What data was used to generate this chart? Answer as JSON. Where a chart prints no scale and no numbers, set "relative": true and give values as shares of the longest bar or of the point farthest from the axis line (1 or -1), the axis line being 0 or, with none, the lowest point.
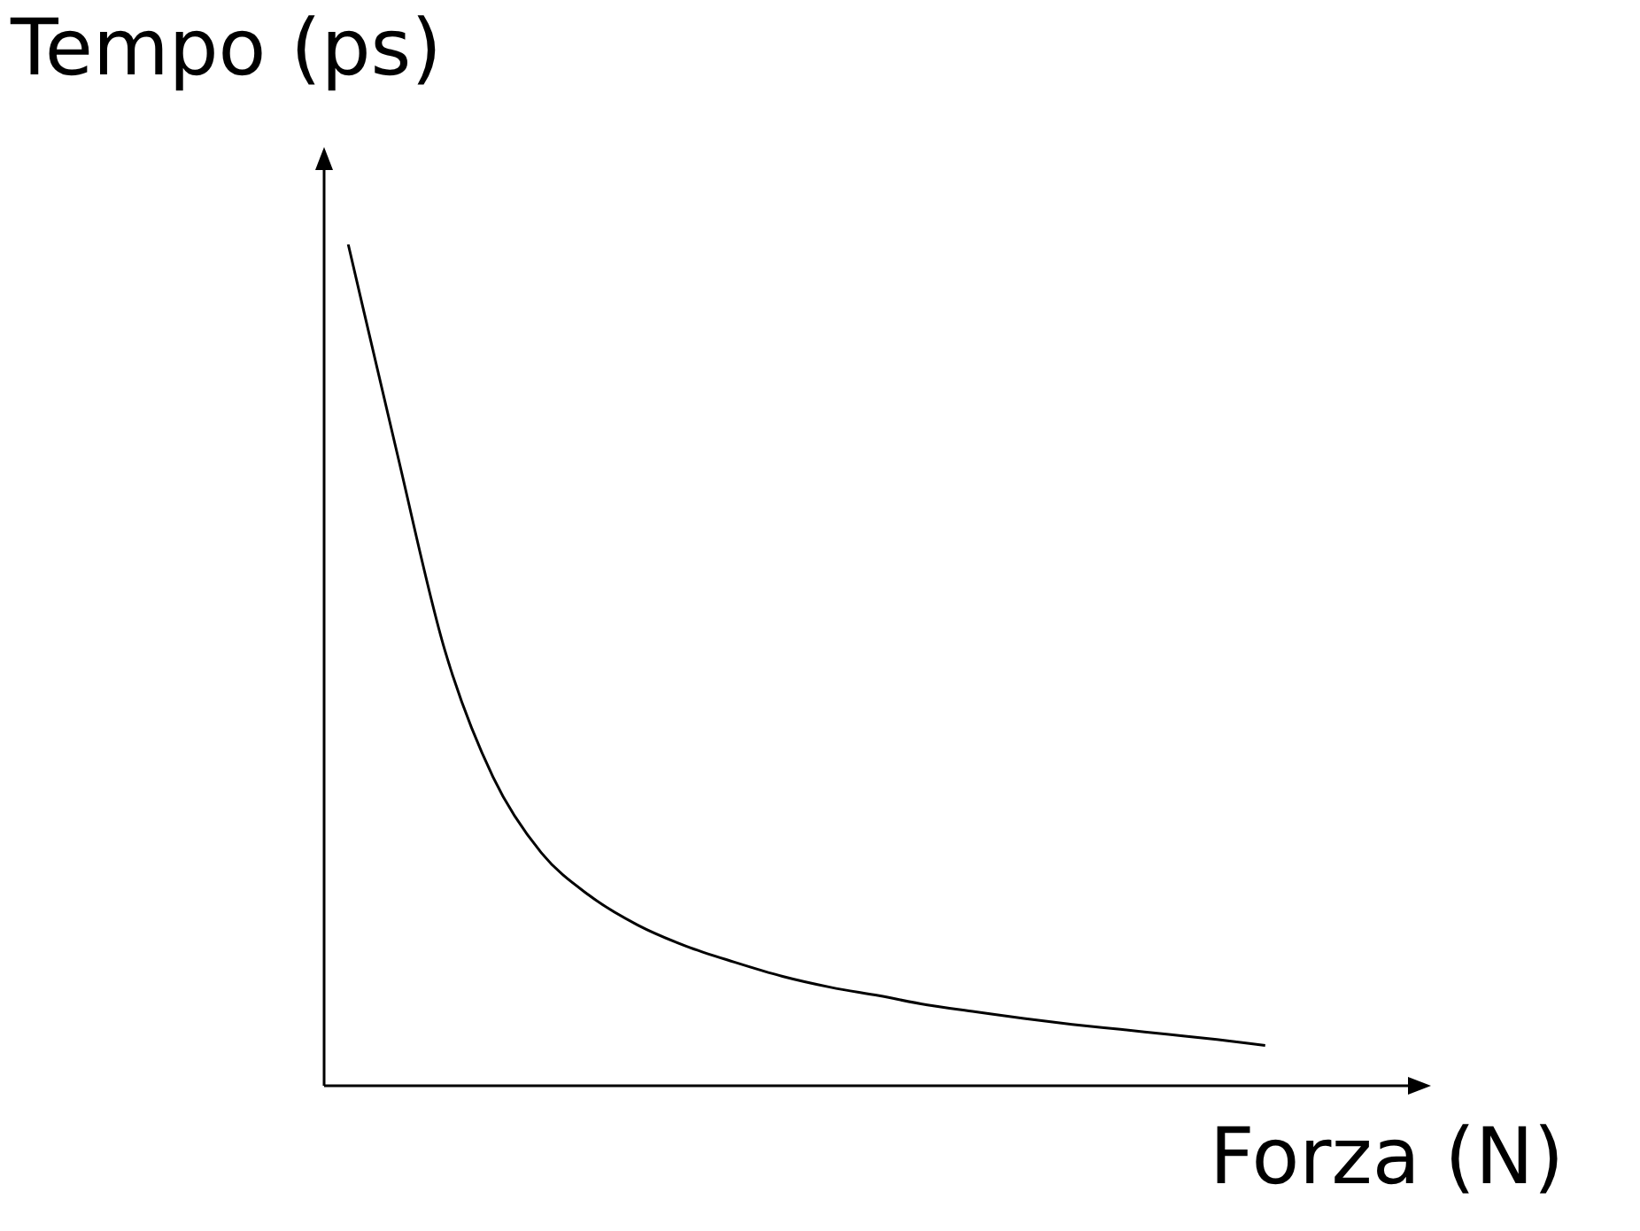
{
  "chart_data": {
    "type": "line",
    "xlabel": "Forza (N)",
    "ylabel": "Tempo (ps)",
    "relative": true,
    "color": "#000000",
    "legend": false,
    "marker": "none",
    "line_style": "solid",
    "categories": [
      null,
      null,
      null,
      null,
      null,
      null,
      null,
      null,
      null,
      null,
      null,
      null,
      null,
      null,
      null,
      null,
      null,
      null,
      null,
      null
    ],
    "values": [
      1,
      0.755,
      0.518,
      0.367,
      0.277,
      0.226,
      0.191,
      0.166,
      0.147,
      0.13,
      0.117,
      0.107,
      0.096,
      0.088,
      0.08,
      0.073,
      0.067,
      0.061,
      0.055,
      0.048
    ]
  }
}
